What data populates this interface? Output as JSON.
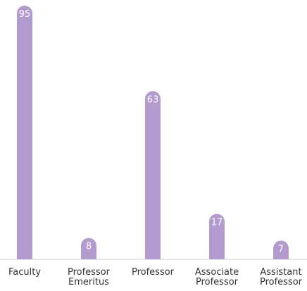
{
  "chart_data": {
    "type": "bar",
    "categories": [
      "Faculty",
      "Professor Emeritus",
      "Professor",
      "Associate Professor",
      "Assistant Professor"
    ],
    "values": [
      95,
      8,
      63,
      17,
      7
    ],
    "color": "#b39bd0",
    "ylim": [
      0,
      95
    ]
  }
}
